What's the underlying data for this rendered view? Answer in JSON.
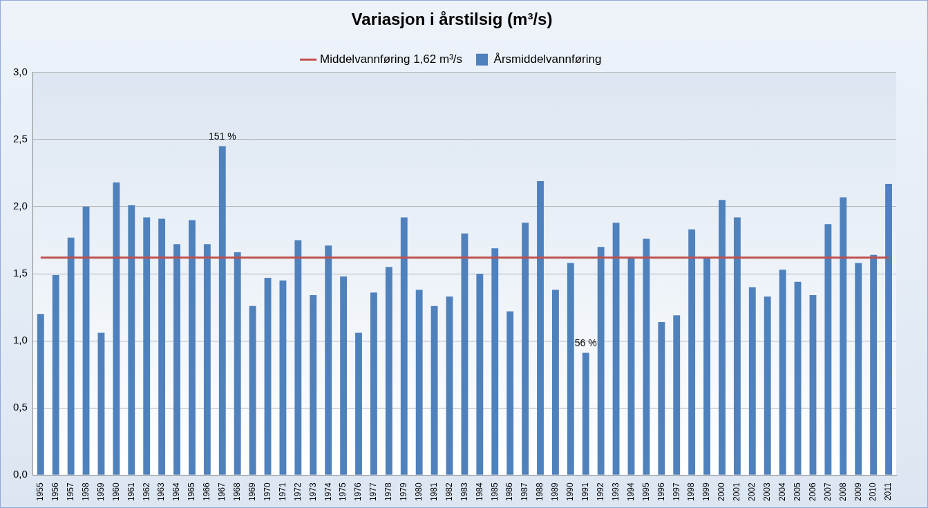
{
  "chart_data": {
    "type": "bar",
    "title": "Variasjon i årstilsig (m³/s)",
    "categories": [
      "1955",
      "1956",
      "1957",
      "1958",
      "1959",
      "1960",
      "1961",
      "1962",
      "1963",
      "1964",
      "1965",
      "1966",
      "1967",
      "1968",
      "1969",
      "1970",
      "1971",
      "1972",
      "1973",
      "1974",
      "1975",
      "1976",
      "1977",
      "1978",
      "1979",
      "1980",
      "1981",
      "1982",
      "1983",
      "1984",
      "1985",
      "1986",
      "1987",
      "1988",
      "1989",
      "1990",
      "1991",
      "1992",
      "1993",
      "1994",
      "1995",
      "1996",
      "1997",
      "1998",
      "1999",
      "2000",
      "2001",
      "2002",
      "2003",
      "2004",
      "2005",
      "2006",
      "2007",
      "2008",
      "2009",
      "2010",
      "2011"
    ],
    "series": [
      {
        "name": "Årsmiddelvannføring",
        "type": "bar",
        "color": "#4f81bd",
        "values": [
          1.2,
          1.49,
          1.77,
          2.0,
          1.06,
          2.18,
          2.01,
          1.92,
          1.91,
          1.72,
          1.9,
          1.72,
          2.45,
          1.66,
          1.26,
          1.47,
          1.45,
          1.75,
          1.34,
          1.71,
          1.48,
          1.06,
          1.36,
          1.55,
          1.92,
          1.38,
          1.26,
          1.33,
          1.8,
          1.5,
          1.69,
          1.22,
          1.88,
          2.19,
          1.38,
          1.58,
          0.91,
          1.7,
          1.88,
          1.62,
          1.76,
          1.14,
          1.19,
          1.83,
          1.62,
          2.05,
          1.92,
          1.4,
          1.33,
          1.53,
          1.44,
          1.34,
          1.87,
          2.07,
          1.58,
          1.64,
          2.17
        ]
      },
      {
        "name": "Middelvannføring 1,62 m³/s",
        "type": "line",
        "color": "#c0504d",
        "marker": "none",
        "values": [
          1.62,
          1.62,
          1.62,
          1.62,
          1.62,
          1.62,
          1.62,
          1.62,
          1.62,
          1.62,
          1.62,
          1.62,
          1.62,
          1.62,
          1.62,
          1.62,
          1.62,
          1.62,
          1.62,
          1.62,
          1.62,
          1.62,
          1.62,
          1.62,
          1.62,
          1.62,
          1.62,
          1.62,
          1.62,
          1.62,
          1.62,
          1.62,
          1.62,
          1.62,
          1.62,
          1.62,
          1.62,
          1.62,
          1.62,
          1.62,
          1.62,
          1.62,
          1.62,
          1.62,
          1.62,
          1.62,
          1.62,
          1.62,
          1.62,
          1.62,
          1.62,
          1.62,
          1.62,
          1.62,
          1.62,
          1.62,
          1.62
        ]
      }
    ],
    "annotations": [
      {
        "category": "1967",
        "text": "151 %"
      },
      {
        "category": "1991",
        "text": "56 %"
      }
    ],
    "ylim": [
      0,
      3
    ],
    "yticks": [
      {
        "value": 0,
        "label": "0,0"
      },
      {
        "value": 0.5,
        "label": "0,5"
      },
      {
        "value": 1,
        "label": "1,0"
      },
      {
        "value": 1.5,
        "label": "1,5"
      },
      {
        "value": 2,
        "label": "2,0"
      },
      {
        "value": 2.5,
        "label": "2,5"
      },
      {
        "value": 3,
        "label": "3,0"
      }
    ],
    "grid": true,
    "legend": "top"
  }
}
